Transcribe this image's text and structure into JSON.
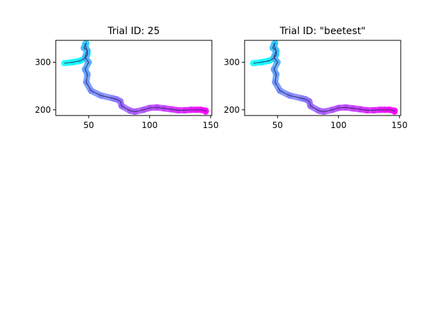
{
  "chart_data": [
    {
      "type": "line",
      "title": "Trial ID: 25",
      "xlabel": "",
      "ylabel": "",
      "xlim": [
        23,
        151
      ],
      "ylim": [
        188,
        346
      ],
      "xticks": [
        50,
        100,
        150
      ],
      "yticks": [
        200,
        300
      ],
      "grid": false,
      "legend": "none",
      "colormap": [
        "#00ffff",
        "#ff00ff"
      ],
      "path_color": "#333366",
      "x": [
        30,
        37,
        43,
        47,
        49,
        49,
        47,
        48,
        46,
        49,
        47,
        50,
        47,
        49,
        48,
        52,
        60,
        70,
        73,
        76,
        77,
        84,
        88,
        95,
        100,
        106,
        112,
        118,
        123,
        129,
        134,
        138,
        142,
        146,
        146
      ],
      "y": [
        298,
        300,
        303,
        308,
        316,
        322,
        338,
        340,
        330,
        325,
        310,
        300,
        285,
        275,
        258,
        240,
        230,
        224,
        222,
        218,
        208,
        198,
        196,
        200,
        204,
        205,
        203,
        201,
        199,
        199,
        200,
        200,
        200,
        198,
        196
      ]
    },
    {
      "type": "line",
      "title": "Trial ID: \"beetest\"",
      "xlabel": "",
      "ylabel": "",
      "xlim": [
        23,
        151
      ],
      "ylim": [
        188,
        346
      ],
      "xticks": [
        50,
        100,
        150
      ],
      "yticks": [
        200,
        300
      ],
      "grid": false,
      "legend": "none",
      "colormap": [
        "#00ffff",
        "#ff00ff"
      ],
      "path_color": "#333366",
      "x": [
        30,
        37,
        43,
        47,
        49,
        49,
        47,
        48,
        46,
        49,
        47,
        50,
        47,
        49,
        48,
        52,
        60,
        70,
        73,
        76,
        77,
        84,
        88,
        95,
        100,
        106,
        112,
        118,
        123,
        129,
        134,
        138,
        142,
        146,
        146
      ],
      "y": [
        298,
        300,
        303,
        308,
        316,
        322,
        338,
        340,
        330,
        325,
        310,
        300,
        285,
        275,
        258,
        240,
        230,
        224,
        222,
        218,
        208,
        198,
        196,
        200,
        204,
        205,
        203,
        201,
        199,
        199,
        200,
        200,
        200,
        198,
        196
      ]
    }
  ]
}
